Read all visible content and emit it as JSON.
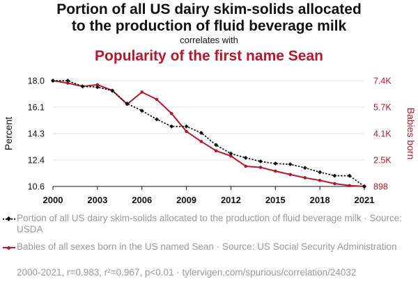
{
  "header": {
    "title_line1": "Portion of all US dairy skim-solids allocated",
    "title_line2": "to the production of fluid beverage milk",
    "correlates": "correlates with",
    "title2": "Popularity of the first name Sean"
  },
  "colors": {
    "series1": "#111111",
    "series2": "#b5172b",
    "grid": "#e6e6e6",
    "muted": "#9a9a9a"
  },
  "chart_data": {
    "type": "line",
    "x": [
      2000,
      2001,
      2002,
      2003,
      2004,
      2005,
      2006,
      2007,
      2008,
      2009,
      2010,
      2011,
      2012,
      2013,
      2014,
      2015,
      2016,
      2017,
      2018,
      2019,
      2020,
      2021
    ],
    "xticks": [
      "2000",
      "2003",
      "2006",
      "2009",
      "2012",
      "2015",
      "2018",
      "2021"
    ],
    "xlim": [
      2000,
      2021
    ],
    "y_left": {
      "label": "Percent",
      "ticks": [
        "18.0",
        "16.1",
        "14.3",
        "12.4",
        "10.6"
      ],
      "lim": [
        10.6,
        18.0
      ]
    },
    "y_right": {
      "label": "Babies born",
      "ticks": [
        "7.4K",
        "5.7K",
        "4.1K",
        "2.5K",
        "898"
      ],
      "lim": [
        898,
        7400
      ]
    },
    "series": [
      {
        "name": "Portion of all US dairy skim-solids allocated to the production of fluid beverage milk",
        "axis": "left",
        "style": "dotted-diamond",
        "values": [
          18.0,
          18.0,
          17.6,
          17.55,
          17.3,
          16.4,
          15.9,
          15.3,
          14.8,
          14.8,
          14.35,
          13.5,
          12.9,
          12.6,
          12.35,
          12.2,
          12.15,
          11.9,
          11.6,
          11.35,
          11.35,
          10.6
        ]
      },
      {
        "name": "Babies of all sexes born in the US named Sean",
        "axis": "right",
        "style": "solid-dot",
        "values": [
          7400,
          7250,
          7050,
          7150,
          6800,
          5950,
          6700,
          6250,
          5380,
          4280,
          3660,
          3090,
          2770,
          2140,
          2070,
          1840,
          1630,
          1430,
          1270,
          1070,
          950,
          898
        ]
      }
    ]
  },
  "legend": {
    "item1": "Portion of all US dairy skim-solids allocated to the production of fluid beverage milk · Source: USDA",
    "item2": "Babies of all sexes born in the US named Sean · Source: US Social Security Administration"
  },
  "footer": "2000-2021, r=0.983, r²=0.967, p<0.01 · tylervigen.com/spurious/correlation/24032"
}
